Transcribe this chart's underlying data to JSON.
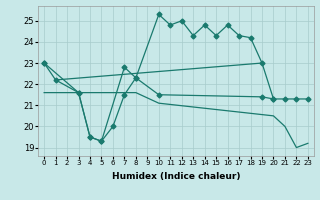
{
  "xlabel": "Humidex (Indice chaleur)",
  "bg_color": "#c8e8e8",
  "line_color": "#1a7a6e",
  "grid_color": "#a8cccc",
  "xlim": [
    -0.5,
    23.5
  ],
  "ylim": [
    18.6,
    25.7
  ],
  "xticks": [
    0,
    1,
    2,
    3,
    4,
    5,
    6,
    7,
    8,
    9,
    10,
    11,
    12,
    13,
    14,
    15,
    16,
    17,
    18,
    19,
    20,
    21,
    22,
    23
  ],
  "yticks": [
    19,
    20,
    21,
    22,
    23,
    24,
    25
  ],
  "line1_x": [
    0,
    1,
    3,
    4,
    5,
    7,
    8,
    10,
    11,
    12,
    13,
    14,
    15,
    16,
    17,
    18,
    19,
    20
  ],
  "line1_y": [
    23.0,
    22.2,
    21.6,
    19.5,
    19.3,
    22.8,
    22.3,
    25.3,
    24.8,
    25.0,
    24.3,
    24.8,
    24.3,
    24.8,
    24.3,
    24.2,
    23.0,
    21.3
  ],
  "line2_x": [
    1,
    19
  ],
  "line2_y": [
    22.2,
    23.0
  ],
  "line3_x": [
    0,
    3,
    4,
    5,
    6,
    7,
    8,
    10,
    19,
    20,
    21,
    22,
    23
  ],
  "line3_y": [
    23.0,
    21.6,
    19.5,
    19.3,
    20.0,
    21.5,
    22.3,
    21.5,
    21.4,
    21.3,
    21.3,
    21.3,
    21.3
  ],
  "line4_x": [
    0,
    3,
    4,
    5,
    6,
    7,
    8,
    10,
    20,
    21,
    22,
    23
  ],
  "line4_y": [
    21.6,
    21.6,
    21.6,
    21.6,
    21.6,
    21.6,
    21.6,
    21.1,
    20.5,
    20.0,
    19.0,
    19.2
  ]
}
